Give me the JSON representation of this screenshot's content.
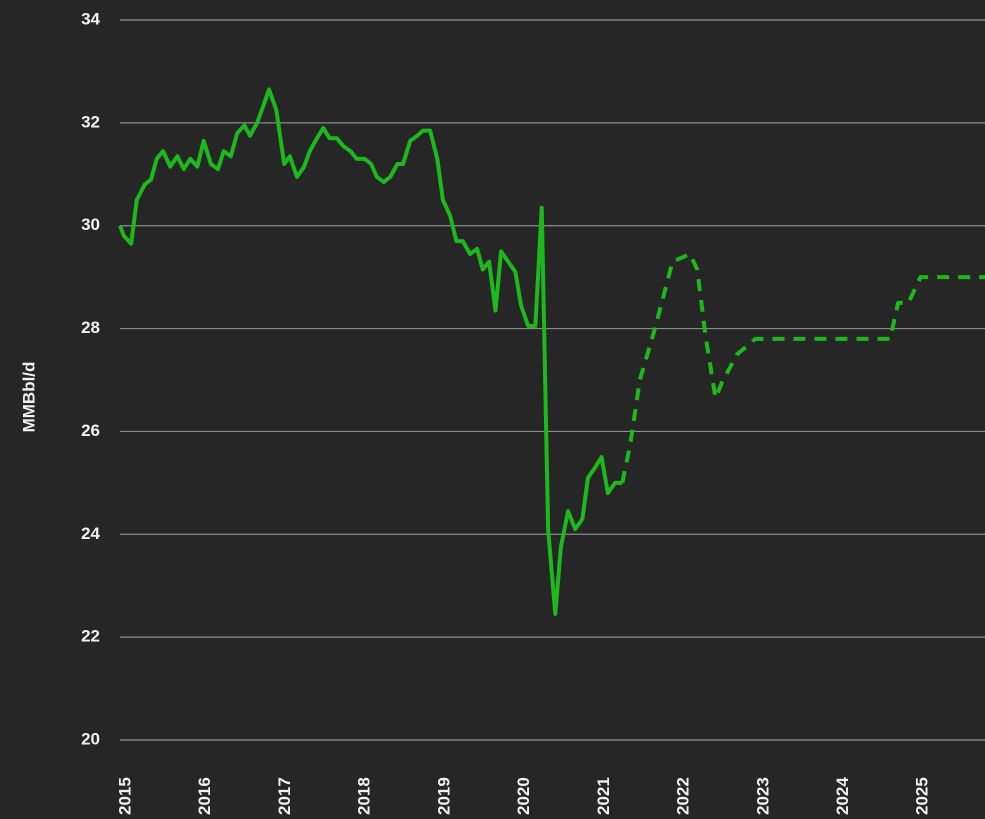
{
  "chart_data": {
    "type": "line",
    "ylabel": "MMBbl/d",
    "ylim": [
      20,
      34
    ],
    "yticks": [
      20,
      22,
      24,
      26,
      28,
      30,
      32,
      34
    ],
    "xlim": [
      2015,
      2025.85
    ],
    "xticks": [
      2015,
      2016,
      2017,
      2018,
      2019,
      2020,
      2021,
      2022,
      2023,
      2024,
      2025
    ],
    "grid": true,
    "series": [
      {
        "color": "#1cb81c",
        "dashed": false,
        "x": [
          2015.0,
          2015.05,
          2015.14,
          2015.21,
          2015.31,
          2015.39,
          2015.46,
          2015.54,
          2015.63,
          2015.72,
          2015.8,
          2015.88,
          2015.97,
          2016.05,
          2016.14,
          2016.23,
          2016.3,
          2016.39,
          2016.47,
          2016.56,
          2016.63,
          2016.72,
          2016.79,
          2016.87,
          2016.96,
          2017.06,
          2017.13,
          2017.22,
          2017.31,
          2017.38,
          2017.47,
          2017.55,
          2017.63,
          2017.72,
          2017.8,
          2017.89,
          2017.97,
          2018.07,
          2018.15,
          2018.22,
          2018.31,
          2018.39,
          2018.48,
          2018.55,
          2018.64,
          2018.73,
          2018.8,
          2018.89,
          2018.98,
          2019.05,
          2019.14,
          2019.22,
          2019.3,
          2019.39,
          2019.48,
          2019.55,
          2019.63,
          2019.71,
          2019.78,
          2019.87,
          2019.96,
          2020.03,
          2020.12,
          2020.21,
          2020.29,
          2020.37,
          2020.46,
          2020.53,
          2020.62,
          2020.71,
          2020.8,
          2020.87,
          2020.96,
          2021.04,
          2021.12,
          2021.21,
          2021.3
        ],
        "values": [
          30.0,
          29.8,
          29.65,
          30.5,
          30.8,
          30.9,
          31.3,
          31.45,
          31.15,
          31.35,
          31.1,
          31.3,
          31.15,
          31.65,
          31.2,
          31.1,
          31.45,
          31.35,
          31.8,
          31.95,
          31.75,
          32.0,
          32.3,
          32.65,
          32.25,
          31.2,
          31.35,
          30.95,
          31.15,
          31.45,
          31.7,
          31.9,
          31.7,
          31.7,
          31.55,
          31.45,
          31.3,
          31.3,
          31.2,
          30.95,
          30.85,
          30.95,
          31.2,
          31.2,
          31.65,
          31.75,
          31.85,
          31.85,
          31.3,
          30.5,
          30.2,
          29.7,
          29.7,
          29.45,
          29.55,
          29.15,
          29.3,
          28.35,
          29.5,
          29.3,
          29.1,
          28.45,
          28.05,
          28.05,
          30.35,
          24.1,
          22.45,
          23.75,
          24.45,
          24.1,
          24.3,
          25.1,
          25.3,
          25.5,
          24.8,
          25.0,
          25.0
        ]
      },
      {
        "color": "#1cb81c",
        "dashed": true,
        "x": [
          2021.3,
          2021.4,
          2021.52,
          2021.71,
          2021.93,
          2022.15,
          2022.24,
          2022.35,
          2022.47,
          2022.55,
          2022.74,
          2022.97,
          2024.66,
          2024.76,
          2024.89,
          2025.04,
          2025.85
        ],
        "values": [
          25.0,
          25.75,
          27.0,
          28.0,
          29.3,
          29.45,
          29.15,
          27.8,
          26.65,
          26.95,
          27.5,
          27.8,
          27.8,
          28.5,
          28.5,
          29.0,
          29.0
        ]
      }
    ]
  }
}
